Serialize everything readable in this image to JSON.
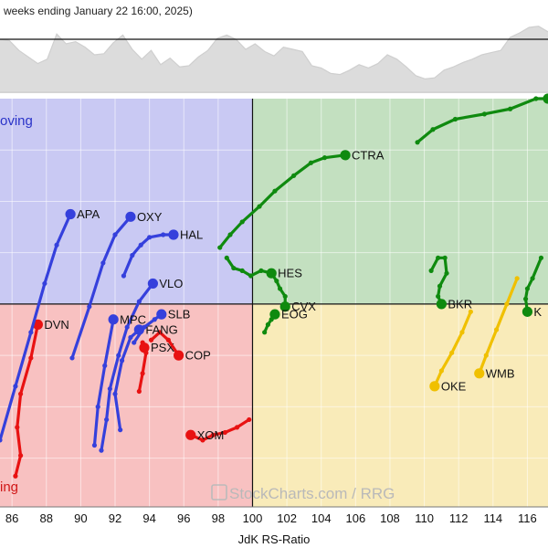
{
  "chart_data": {
    "type": "scatter",
    "header_text": "weeks ending January 22 16:00, 2025)",
    "xlabel": "JdK RS-Ratio",
    "xlim": [
      85.3,
      117.2
    ],
    "ylim": [
      92.1,
      108.0
    ],
    "x_ticks": [
      "86",
      "88",
      "90",
      "92",
      "94",
      "96",
      "98",
      "100",
      "102",
      "104",
      "106",
      "108",
      "110",
      "112",
      "114",
      "116"
    ],
    "quadrant_labels": {
      "improving": "oving",
      "lagging": "ing"
    },
    "watermark": "StockCharts.com / RRG",
    "colors": {
      "leading_bg": "#c3e0c0",
      "weakening_bg": "#f9ebb9",
      "lagging_bg": "#f8c1c1",
      "improving_bg": "#c9c9f3",
      "green": "#0f8a0f",
      "yellow": "#f0c000",
      "red": "#e81212",
      "blue": "#3540dc",
      "improving_text": "#2a33c8",
      "lagging_text": "#d01818"
    },
    "series": [
      {
        "name": "CTRA",
        "color": "green",
        "x": [
          98.1,
          98.7,
          99.4,
          100.4,
          101.3,
          102.4,
          103.4,
          104.2,
          105.4
        ],
        "y": [
          102.2,
          102.7,
          103.2,
          103.8,
          104.4,
          105.0,
          105.5,
          105.7,
          105.8
        ]
      },
      {
        "name": "HES",
        "color": "green",
        "x": [
          98.5,
          98.9,
          99.4,
          99.9,
          100.5,
          101.1
        ],
        "y": [
          101.8,
          101.4,
          101.3,
          101.1,
          101.3,
          101.2
        ]
      },
      {
        "name": "CVX",
        "color": "green",
        "x": [
          101.1,
          101.4,
          101.6,
          101.9,
          101.9
        ],
        "y": [
          101.2,
          100.9,
          100.6,
          100.3,
          99.9
        ]
      },
      {
        "name": "EOG",
        "color": "green",
        "x": [
          100.7,
          100.9,
          101.1,
          101.3
        ],
        "y": [
          98.9,
          99.2,
          99.4,
          99.6
        ]
      },
      {
        "name": "BKR",
        "color": "green",
        "x": [
          110.4,
          110.8,
          111.2,
          111.3,
          110.9,
          110.8,
          111.0
        ],
        "y": [
          101.3,
          101.8,
          101.8,
          101.2,
          100.7,
          100.3,
          100.0
        ]
      },
      {
        "name": "",
        "color": "green",
        "x": [
          109.6,
          110.5,
          111.8,
          113.5,
          115.0,
          116.5,
          117.2
        ],
        "y": [
          106.3,
          106.8,
          107.2,
          107.4,
          107.6,
          108.0,
          108.0
        ]
      },
      {
        "name": "K",
        "color": "green",
        "x": [
          116.8,
          116.3,
          116.0,
          115.9,
          116.0
        ],
        "y": [
          101.8,
          101.0,
          100.6,
          100.2,
          99.7
        ]
      },
      {
        "name": "OKE",
        "color": "yellow",
        "x": [
          112.7,
          112.2,
          111.6,
          111.0,
          110.6
        ],
        "y": [
          99.7,
          98.9,
          98.1,
          97.4,
          96.8
        ]
      },
      {
        "name": "WMB",
        "color": "yellow",
        "x": [
          115.4,
          114.8,
          114.2,
          113.6,
          113.2
        ],
        "y": [
          101.0,
          100.0,
          99.0,
          98.0,
          97.3
        ]
      },
      {
        "name": "PSX",
        "color": "red",
        "x": [
          93.4,
          93.6,
          93.8,
          93.6,
          93.7
        ],
        "y": [
          96.6,
          97.3,
          98.1,
          98.5,
          98.3
        ]
      },
      {
        "name": "COP",
        "color": "red",
        "x": [
          94.1,
          94.6,
          95.1,
          95.7
        ],
        "y": [
          98.6,
          98.9,
          98.6,
          98.0
        ]
      },
      {
        "name": "XOM",
        "color": "red",
        "x": [
          99.8,
          99.1,
          98.4,
          97.7,
          97.1,
          96.4
        ],
        "y": [
          95.5,
          95.2,
          95.0,
          94.9,
          94.7,
          94.9
        ]
      },
      {
        "name": "DVN",
        "color": "red",
        "x": [
          86.2,
          86.5,
          86.3,
          86.5,
          87.1,
          87.5
        ],
        "y": [
          93.3,
          94.1,
          95.2,
          96.5,
          97.9,
          99.2
        ]
      },
      {
        "name": "APA",
        "color": "blue",
        "x": [
          85.3,
          86.2,
          87.1,
          87.9,
          88.6,
          89.4
        ],
        "y": [
          94.7,
          96.8,
          98.9,
          100.8,
          102.3,
          103.5
        ]
      },
      {
        "name": "OXY",
        "color": "blue",
        "x": [
          89.5,
          90.5,
          91.3,
          92.0,
          92.9
        ],
        "y": [
          97.9,
          99.9,
          101.6,
          102.7,
          103.4
        ]
      },
      {
        "name": "HAL",
        "color": "blue",
        "x": [
          92.5,
          93.0,
          93.5,
          94.0,
          94.8,
          95.4
        ],
        "y": [
          101.1,
          101.9,
          102.3,
          102.6,
          102.7,
          102.7
        ]
      },
      {
        "name": "VLO",
        "color": "blue",
        "x": [
          91.2,
          91.5,
          91.7,
          92.2,
          92.7,
          93.4,
          94.2
        ],
        "y": [
          94.3,
          95.5,
          96.7,
          98.0,
          99.1,
          100.1,
          100.8
        ]
      },
      {
        "name": "MPC",
        "color": "blue",
        "x": [
          90.8,
          91.0,
          91.4,
          91.9
        ],
        "y": [
          94.5,
          96.0,
          97.6,
          99.4
        ]
      },
      {
        "name": "FANG",
        "color": "blue",
        "x": [
          92.3,
          92.0,
          92.4,
          92.9,
          93.4
        ],
        "y": [
          95.1,
          96.5,
          97.8,
          98.7,
          99.0
        ]
      },
      {
        "name": "SLB",
        "color": "blue",
        "x": [
          93.1,
          93.7,
          94.3,
          94.7
        ],
        "y": [
          98.5,
          99.1,
          99.4,
          99.6
        ]
      }
    ],
    "benchmark_line": [
      0.78,
      0.76,
      0.58,
      0.46,
      0.34,
      0.42,
      0.88,
      0.7,
      0.74,
      0.64,
      0.5,
      0.52,
      0.72,
      0.86,
      0.6,
      0.42,
      0.58,
      0.32,
      0.44,
      0.28,
      0.3,
      0.46,
      0.58,
      0.8,
      0.86,
      0.78,
      0.6,
      0.7,
      0.56,
      0.48,
      0.64,
      0.6,
      0.56,
      0.3,
      0.26,
      0.16,
      0.14,
      0.22,
      0.32,
      0.26,
      0.34,
      0.5,
      0.42,
      0.28,
      0.12,
      0.06,
      0.08,
      0.22,
      0.28,
      0.36,
      0.42,
      0.5,
      0.54,
      0.58,
      0.82,
      0.9,
      1.0,
      1.02,
      0.92
    ]
  }
}
